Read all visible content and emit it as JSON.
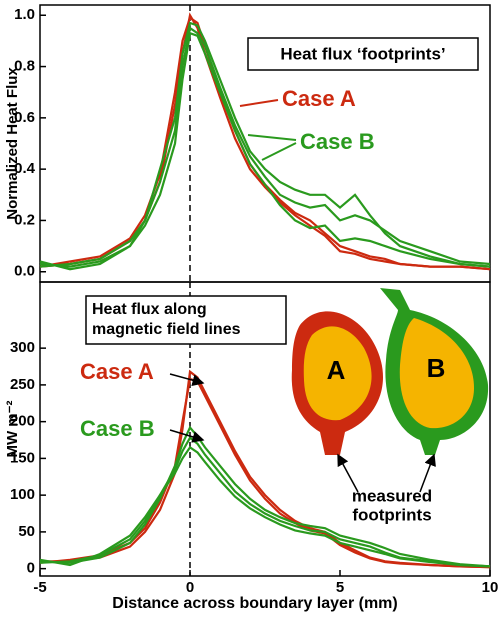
{
  "chart_data": [
    {
      "type": "line",
      "ylabel": "Normalized Heat Flux",
      "annotation": "Heat flux ‘footprints’",
      "x": [
        -5,
        -4,
        -3,
        -2,
        -1.5,
        -1,
        -0.5,
        -0.25,
        0,
        0.25,
        0.5,
        1,
        1.5,
        2,
        2.5,
        3,
        3.5,
        4,
        4.5,
        5,
        5.5,
        6,
        6.5,
        7,
        8,
        9,
        10
      ],
      "xlim": [
        -5,
        10
      ],
      "ylim": [
        -0.04,
        1.04
      ],
      "yticks": [
        {
          "value": 0,
          "label": "0.0"
        },
        0.2,
        0.4,
        0.6,
        0.8,
        {
          "value": 1,
          "label": "1.0"
        }
      ],
      "vline": 0,
      "series": [
        {
          "name": "Case A",
          "color": "#cc2a10",
          "values": [
            [
              0.02,
              0.03,
              0.05,
              0.12,
              0.2,
              0.35,
              0.65,
              0.85,
              1.0,
              0.95,
              0.85,
              0.68,
              0.52,
              0.4,
              0.33,
              0.27,
              0.22,
              0.18,
              0.14,
              0.08,
              0.07,
              0.05,
              0.04,
              0.03,
              0.02,
              0.02,
              0.01
            ],
            [
              0.02,
              0.04,
              0.06,
              0.13,
              0.22,
              0.38,
              0.7,
              0.9,
              0.99,
              0.97,
              0.88,
              0.7,
              0.55,
              0.42,
              0.34,
              0.28,
              0.23,
              0.2,
              0.15,
              0.1,
              0.08,
              0.06,
              0.05,
              0.03,
              0.02,
              0.02,
              0.01
            ]
          ]
        },
        {
          "name": "Case B",
          "color": "#2a9a1e",
          "values": [
            [
              0.03,
              0.02,
              0.04,
              0.1,
              0.2,
              0.4,
              0.6,
              0.85,
              0.97,
              0.96,
              0.9,
              0.75,
              0.6,
              0.47,
              0.4,
              0.35,
              0.32,
              0.3,
              0.3,
              0.25,
              0.3,
              0.22,
              0.15,
              0.1,
              0.06,
              0.03,
              0.02
            ],
            [
              0.02,
              0.03,
              0.05,
              0.12,
              0.2,
              0.35,
              0.55,
              0.8,
              0.95,
              0.93,
              0.88,
              0.72,
              0.57,
              0.45,
              0.37,
              0.3,
              0.27,
              0.25,
              0.26,
              0.2,
              0.22,
              0.2,
              0.16,
              0.12,
              0.08,
              0.04,
              0.03
            ],
            [
              0.04,
              0.01,
              0.03,
              0.1,
              0.18,
              0.3,
              0.5,
              0.75,
              0.93,
              0.92,
              0.85,
              0.7,
              0.55,
              0.42,
              0.34,
              0.26,
              0.2,
              0.17,
              0.18,
              0.12,
              0.13,
              0.12,
              0.1,
              0.08,
              0.05,
              0.03,
              0.02
            ]
          ]
        }
      ]
    },
    {
      "type": "line",
      "ylabel": "MW m⁻²",
      "xlabel": "Distance across boundary layer (mm)",
      "annotation": [
        "Heat flux along",
        "magnetic field lines"
      ],
      "inset_labels": [
        "A",
        "B"
      ],
      "inset_note": [
        "measured",
        "footprints"
      ],
      "x": [
        -5,
        -4,
        -3,
        -2,
        -1.5,
        -1,
        -0.5,
        -0.25,
        0,
        0.25,
        0.5,
        1,
        1.5,
        2,
        2.5,
        3,
        3.5,
        4,
        4.5,
        5,
        5.5,
        6,
        6.5,
        7,
        8,
        9,
        10
      ],
      "xlim": [
        -5,
        10
      ],
      "xticks": [
        -5,
        0,
        5,
        10
      ],
      "ylim": [
        -10,
        390
      ],
      "yticks": [
        0,
        50,
        100,
        150,
        200,
        250,
        300
      ],
      "vline": 0,
      "series": [
        {
          "name": "Case A",
          "color": "#cc2a10",
          "values": [
            [
              10,
              10,
              15,
              30,
              50,
              80,
              130,
              190,
              268,
              260,
              240,
              200,
              160,
              125,
              100,
              80,
              65,
              55,
              50,
              35,
              25,
              15,
              10,
              8,
              5,
              3,
              2
            ],
            [
              8,
              12,
              18,
              35,
              55,
              90,
              140,
              200,
              258,
              255,
              235,
              195,
              155,
              120,
              95,
              75,
              62,
              52,
              48,
              32,
              22,
              14,
              9,
              7,
              5,
              3,
              2
            ]
          ]
        },
        {
          "name": "Case B",
          "color": "#2a9a1e",
          "values": [
            [
              10,
              8,
              15,
              35,
              60,
              95,
              140,
              170,
              192,
              180,
              165,
              140,
              115,
              95,
              80,
              70,
              62,
              58,
              55,
              45,
              40,
              35,
              28,
              20,
              12,
              6,
              3
            ],
            [
              8,
              10,
              18,
              40,
              65,
              100,
              135,
              160,
              178,
              170,
              155,
              130,
              105,
              88,
              75,
              65,
              58,
              52,
              50,
              40,
              35,
              30,
              22,
              15,
              10,
              5,
              3
            ],
            [
              12,
              5,
              20,
              45,
              70,
              100,
              130,
              150,
              165,
              158,
              145,
              120,
              98,
              82,
              70,
              60,
              52,
              48,
              45,
              35,
              30,
              25,
              20,
              14,
              9,
              5,
              3
            ]
          ]
        }
      ]
    }
  ]
}
